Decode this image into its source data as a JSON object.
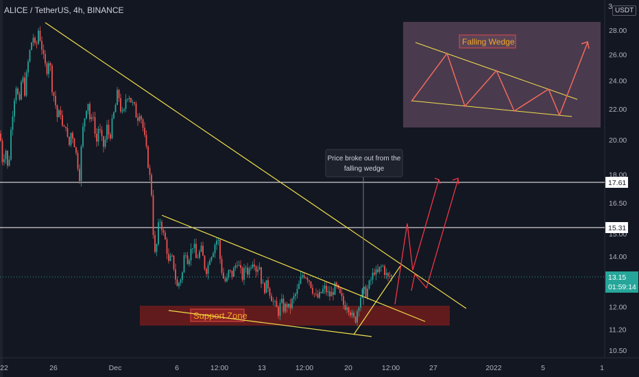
{
  "header": {
    "symbol": "ALICE / TetherUS, 4h, BINANCE",
    "currency": "USDT",
    "top_price_fragment": "3"
  },
  "colors": {
    "background": "#131722",
    "axis_text": "#b2b5be",
    "candle_up": "#26a69a",
    "candle_down": "#ef5350",
    "trendline": "#f2e14c",
    "support_zone": "#6b1c1c",
    "support_text": "#f5a623",
    "arrow": "#f23645",
    "level_line": "#ffffff",
    "current_price_bg": "#26a69a"
  },
  "chart_data": {
    "type": "candlestick",
    "y_axis": {
      "scale": "log",
      "ticks": [
        "28.00",
        "26.00",
        "24.00",
        "22.00",
        "20.00",
        "18.00",
        "16.50",
        "15.00",
        "14.00",
        "12.00",
        "11.20",
        "10.50"
      ],
      "tick_values": [
        28,
        26,
        24,
        22,
        20,
        18,
        16.5,
        15,
        14,
        12,
        11.2,
        10.5
      ]
    },
    "x_axis": {
      "ticks": [
        "22",
        "26",
        "Dec",
        "6",
        "12:00",
        "13",
        "12:00",
        "20",
        "12:00",
        "27",
        "2022",
        "5",
        "1"
      ]
    },
    "price_levels": [
      {
        "label": "17.61",
        "value": 17.61
      },
      {
        "label": "15.31",
        "value": 15.31
      }
    ],
    "current_price": {
      "value": "13.15",
      "countdown": "01:59:14"
    },
    "support_zone": {
      "label": "Support Zone",
      "low": 11.35,
      "high": 12.05
    },
    "annotation": {
      "line1": "Price broke out from the",
      "line2": "falling wedge"
    },
    "inset": {
      "title": "Falling Wedge"
    },
    "price_path": [
      [
        0,
        20.4
      ],
      [
        4,
        18.6
      ],
      [
        8,
        19.6
      ],
      [
        12,
        18.0
      ],
      [
        16,
        20.6
      ],
      [
        20,
        22.5
      ],
      [
        24,
        23.8
      ],
      [
        28,
        22.0
      ],
      [
        32,
        24.5
      ],
      [
        36,
        23.2
      ],
      [
        40,
        25.0
      ],
      [
        44,
        26.4
      ],
      [
        48,
        27.6
      ],
      [
        52,
        26.2
      ],
      [
        56,
        28.0
      ],
      [
        60,
        26.9
      ],
      [
        64,
        25.5
      ],
      [
        68,
        24.7
      ],
      [
        72,
        25.8
      ],
      [
        76,
        23.5
      ],
      [
        80,
        22.6
      ],
      [
        84,
        21.3
      ],
      [
        88,
        22.0
      ],
      [
        92,
        20.4
      ],
      [
        96,
        21.0
      ],
      [
        100,
        19.4
      ],
      [
        104,
        20.6
      ],
      [
        108,
        19.9
      ],
      [
        112,
        18.9
      ],
      [
        116,
        17.9
      ],
      [
        120,
        20.4
      ],
      [
        124,
        21.6
      ],
      [
        128,
        22.7
      ],
      [
        132,
        20.9
      ],
      [
        136,
        21.7
      ],
      [
        140,
        19.6
      ],
      [
        144,
        20.9
      ],
      [
        148,
        20.0
      ],
      [
        152,
        19.5
      ],
      [
        156,
        20.8
      ],
      [
        160,
        20.1
      ],
      [
        164,
        21.2
      ],
      [
        168,
        22.1
      ],
      [
        172,
        23.3
      ],
      [
        176,
        22.0
      ],
      [
        180,
        21.4
      ],
      [
        184,
        22.9
      ],
      [
        188,
        23.0
      ],
      [
        192,
        22.4
      ],
      [
        196,
        22.1
      ],
      [
        200,
        21.3
      ],
      [
        204,
        21.9
      ],
      [
        208,
        20.9
      ],
      [
        212,
        19.8
      ],
      [
        216,
        18.6
      ],
      [
        220,
        17.4
      ],
      [
        222,
        16.6
      ],
      [
        224,
        14.6
      ],
      [
        227,
        13.8
      ],
      [
        230,
        15.2
      ],
      [
        234,
        15.7
      ],
      [
        238,
        15.0
      ],
      [
        242,
        14.6
      ],
      [
        246,
        13.7
      ],
      [
        250,
        14.0
      ],
      [
        254,
        13.5
      ],
      [
        258,
        12.7
      ],
      [
        262,
        13.0
      ],
      [
        266,
        13.3
      ],
      [
        270,
        14.4
      ],
      [
        274,
        13.8
      ],
      [
        278,
        14.2
      ],
      [
        282,
        14.6
      ],
      [
        286,
        13.9
      ],
      [
        290,
        14.1
      ],
      [
        294,
        14.3
      ],
      [
        298,
        13.6
      ],
      [
        302,
        13.4
      ],
      [
        306,
        14.0
      ],
      [
        310,
        14.2
      ],
      [
        314,
        14.6
      ],
      [
        318,
        14.8
      ],
      [
        322,
        13.6
      ],
      [
        326,
        13.1
      ],
      [
        330,
        12.9
      ],
      [
        334,
        13.4
      ],
      [
        338,
        13.2
      ],
      [
        342,
        13.5
      ],
      [
        346,
        13.8
      ],
      [
        350,
        13.4
      ],
      [
        354,
        13.1
      ],
      [
        358,
        13.6
      ],
      [
        362,
        13.3
      ],
      [
        366,
        13.7
      ],
      [
        370,
        13.9
      ],
      [
        374,
        13.4
      ],
      [
        378,
        13.7
      ],
      [
        382,
        12.8
      ],
      [
        386,
        12.7
      ],
      [
        390,
        12.9
      ],
      [
        394,
        12.5
      ],
      [
        398,
        12.2
      ],
      [
        402,
        12.0
      ],
      [
        406,
        11.8
      ],
      [
        410,
        12.2
      ],
      [
        414,
        11.9
      ],
      [
        418,
        12.1
      ],
      [
        422,
        11.9
      ],
      [
        426,
        12.2
      ],
      [
        430,
        12.4
      ],
      [
        434,
        12.6
      ],
      [
        438,
        13.0
      ],
      [
        442,
        13.3
      ],
      [
        446,
        13.2
      ],
      [
        450,
        13.1
      ],
      [
        454,
        12.8
      ],
      [
        458,
        12.5
      ],
      [
        462,
        12.3
      ],
      [
        466,
        12.4
      ],
      [
        470,
        12.6
      ],
      [
        474,
        12.7
      ],
      [
        478,
        12.5
      ],
      [
        482,
        12.4
      ],
      [
        486,
        12.6
      ],
      [
        490,
        12.8
      ],
      [
        494,
        12.5
      ],
      [
        498,
        12.3
      ],
      [
        502,
        12.0
      ],
      [
        506,
        12.1
      ],
      [
        510,
        11.9
      ],
      [
        514,
        11.6
      ],
      [
        518,
        11.5
      ],
      [
        522,
        12.0
      ],
      [
        526,
        12.4
      ],
      [
        530,
        12.6
      ],
      [
        534,
        12.5
      ],
      [
        538,
        12.8
      ],
      [
        542,
        13.1
      ],
      [
        546,
        13.4
      ],
      [
        550,
        13.2
      ],
      [
        554,
        13.5
      ],
      [
        558,
        13.6
      ],
      [
        562,
        13.3
      ],
      [
        566,
        13.1
      ],
      [
        570,
        13.2
      ],
      [
        574,
        13.15
      ]
    ]
  }
}
